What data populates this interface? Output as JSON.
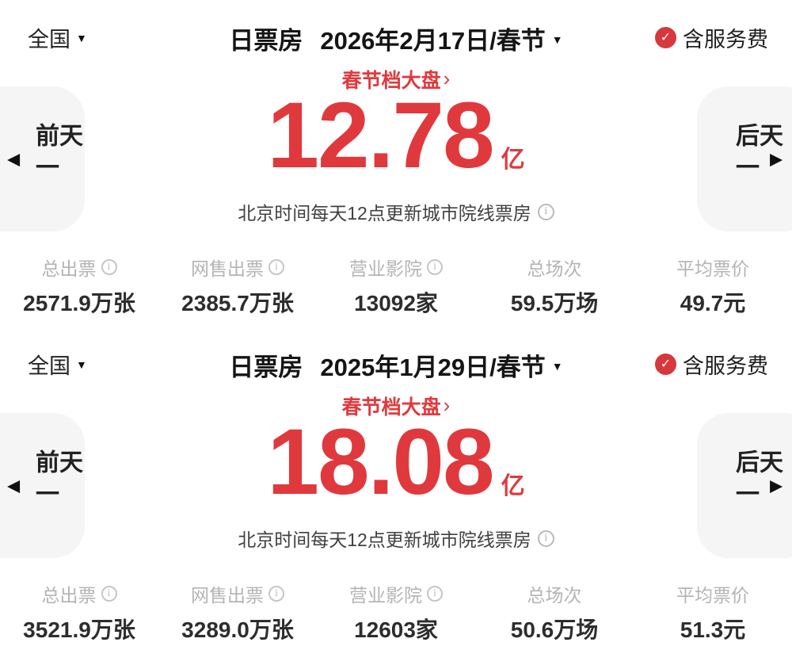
{
  "icons": {
    "info": "i",
    "check": "✓",
    "dropdown": "▼",
    "arrow_left": "◀",
    "arrow_right": "▶",
    "chevron_right": "›"
  },
  "colors": {
    "accent_red": "#e0393d",
    "badge_red": "#d6383b",
    "label_gray": "#b4b4b4",
    "value_dark": "#2d2d2d",
    "button_bg": "#f5f5f6"
  },
  "sections": [
    {
      "region": "全国",
      "metric_label": "日票房",
      "date_label": "2026年2月17日/春节",
      "service_fee_label": "含服务费",
      "campaign_link": "春节档大盘",
      "amount": "12.78",
      "amount_unit": "亿",
      "update_note": "北京时间每天12点更新城市院线票房",
      "prev_day_label": "前一天",
      "next_day_label": "后一天",
      "stats": [
        {
          "label": "总出票",
          "value": "2571.9万张",
          "info": true
        },
        {
          "label": "网售出票",
          "value": "2385.7万张",
          "info": true
        },
        {
          "label": "营业影院",
          "value": "13092家",
          "info": true
        },
        {
          "label": "总场次",
          "value": "59.5万场",
          "info": false
        },
        {
          "label": "平均票价",
          "value": "49.7元",
          "info": false
        }
      ]
    },
    {
      "region": "全国",
      "metric_label": "日票房",
      "date_label": "2025年1月29日/春节",
      "service_fee_label": "含服务费",
      "campaign_link": "春节档大盘",
      "amount": "18.08",
      "amount_unit": "亿",
      "update_note": "北京时间每天12点更新城市院线票房",
      "prev_day_label": "前一天",
      "next_day_label": "后一天",
      "stats": [
        {
          "label": "总出票",
          "value": "3521.9万张",
          "info": true
        },
        {
          "label": "网售出票",
          "value": "3289.0万张",
          "info": true
        },
        {
          "label": "营业影院",
          "value": "12603家",
          "info": true
        },
        {
          "label": "总场次",
          "value": "50.6万场",
          "info": false
        },
        {
          "label": "平均票价",
          "value": "51.3元",
          "info": false
        }
      ]
    }
  ]
}
